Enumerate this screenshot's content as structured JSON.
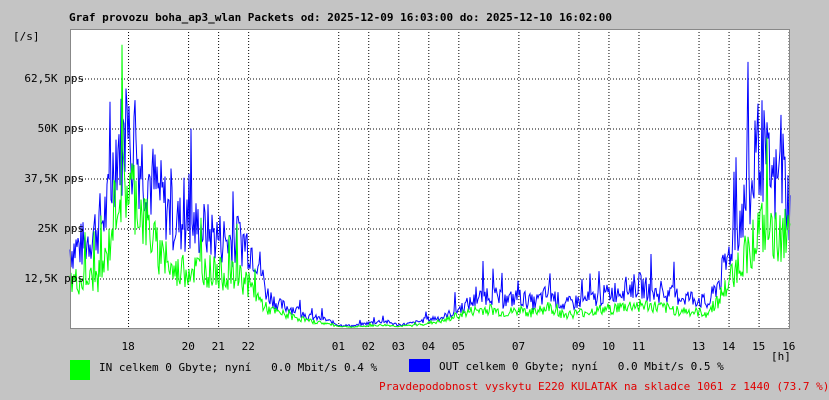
{
  "title": "Graf provozu boha_ap3_wlan Packets od: 2025-12-09 16:03:00 do: 2025-12-10 16:02:00",
  "y_unit": "[/s]",
  "x_unit": "[h]",
  "legend": {
    "in_label": "IN celkem 0 Gbyte; nyní   0.0 Mbit/s 0.4 %",
    "out_label": "OUT celkem 0 Gbyte; nyní   0.0 Mbit/s 0.5 %",
    "in_color": "#00ff00",
    "out_color": "#0000ff"
  },
  "note": "Pravdepodobnost vyskytu E220 KULATAK na skladce 1061 z 1440 (73.7 %)",
  "note_color": "#e00000",
  "chart_data": {
    "type": "line",
    "ylim": [
      0,
      75000
    ],
    "yticks": [
      {
        "value": 12500,
        "label": "12,5K pps"
      },
      {
        "value": 25000,
        "label": "25K pps"
      },
      {
        "value": 37500,
        "label": "37,5K pps"
      },
      {
        "value": 50000,
        "label": "50K pps"
      },
      {
        "value": 62500,
        "label": "62,5K pps"
      }
    ],
    "xlim": [
      16.05,
      40.03
    ],
    "xticks": [
      {
        "value": 18,
        "label": "18"
      },
      {
        "value": 20,
        "label": "20"
      },
      {
        "value": 21,
        "label": "21"
      },
      {
        "value": 22,
        "label": "22"
      },
      {
        "value": 25,
        "label": "01"
      },
      {
        "value": 26,
        "label": "02"
      },
      {
        "value": 27,
        "label": "03"
      },
      {
        "value": 28,
        "label": "04"
      },
      {
        "value": 29,
        "label": "05"
      },
      {
        "value": 31,
        "label": "07"
      },
      {
        "value": 33,
        "label": "09"
      },
      {
        "value": 34,
        "label": "10"
      },
      {
        "value": 35,
        "label": "11"
      },
      {
        "value": 37,
        "label": "13"
      },
      {
        "value": 38,
        "label": "14"
      },
      {
        "value": 39,
        "label": "15"
      },
      {
        "value": 40,
        "label": "16"
      }
    ],
    "series": [
      {
        "name": "OUT",
        "color": "#0000ff",
        "x": [
          16.05,
          16.5,
          17,
          17.3,
          17.6,
          17.9,
          18.2,
          18.5,
          19,
          19.5,
          20,
          20.5,
          21,
          21.5,
          21.9,
          22.3,
          22.6,
          23,
          23.5,
          24,
          24.5,
          25,
          25.5,
          26,
          26.5,
          27,
          27.5,
          28,
          28.5,
          29,
          29.5,
          30,
          30.5,
          31,
          31.5,
          32,
          32.5,
          33,
          33.5,
          34,
          34.5,
          35,
          35.5,
          36,
          36.5,
          37,
          37.3,
          37.6,
          37.9,
          38.2,
          38.5,
          38.8,
          39,
          39.2,
          39.5,
          39.8,
          40.03
        ],
        "values": [
          20000,
          21000,
          26000,
          30000,
          46000,
          47000,
          45000,
          40000,
          34000,
          27000,
          26000,
          25000,
          23000,
          22000,
          22000,
          18000,
          9000,
          6000,
          5000,
          3000,
          2500,
          1000,
          800,
          1500,
          2000,
          1000,
          1500,
          2500,
          3000,
          5000,
          7000,
          9000,
          7000,
          8000,
          6500,
          9000,
          6000,
          7000,
          7500,
          9000,
          10000,
          11000,
          9000,
          8500,
          8000,
          7500,
          6000,
          11000,
          16000,
          25000,
          30000,
          35000,
          47000,
          42000,
          35000,
          40000,
          29000
        ]
      },
      {
        "name": "IN",
        "color": "#00ff00",
        "x": [
          16.05,
          16.5,
          17,
          17.3,
          17.6,
          17.9,
          18.2,
          18.5,
          19,
          19.5,
          20,
          20.5,
          21,
          21.5,
          21.9,
          22.3,
          22.6,
          23,
          23.5,
          24,
          24.5,
          25,
          25.5,
          26,
          26.5,
          27,
          27.5,
          28,
          28.5,
          29,
          29.5,
          30,
          30.5,
          31,
          31.5,
          32,
          32.5,
          33,
          33.5,
          34,
          34.5,
          35,
          35.5,
          36,
          36.5,
          37,
          37.3,
          37.6,
          37.9,
          38.2,
          38.5,
          38.8,
          39,
          39.2,
          39.5,
          39.8,
          40.03
        ],
        "values": [
          12000,
          12000,
          13000,
          18000,
          34000,
          36000,
          34000,
          28000,
          19000,
          14000,
          15000,
          15000,
          14000,
          13000,
          12000,
          8000,
          5000,
          4000,
          3000,
          2000,
          1500,
          700,
          500,
          800,
          1000,
          700,
          900,
          1500,
          2000,
          3500,
          4500,
          5000,
          4000,
          4500,
          4000,
          5500,
          3500,
          4000,
          4500,
          5000,
          5500,
          6000,
          5500,
          5000,
          4500,
          4000,
          4000,
          7000,
          10000,
          15000,
          18000,
          22000,
          25000,
          24000,
          22000,
          24000,
          22000
        ]
      }
    ]
  }
}
